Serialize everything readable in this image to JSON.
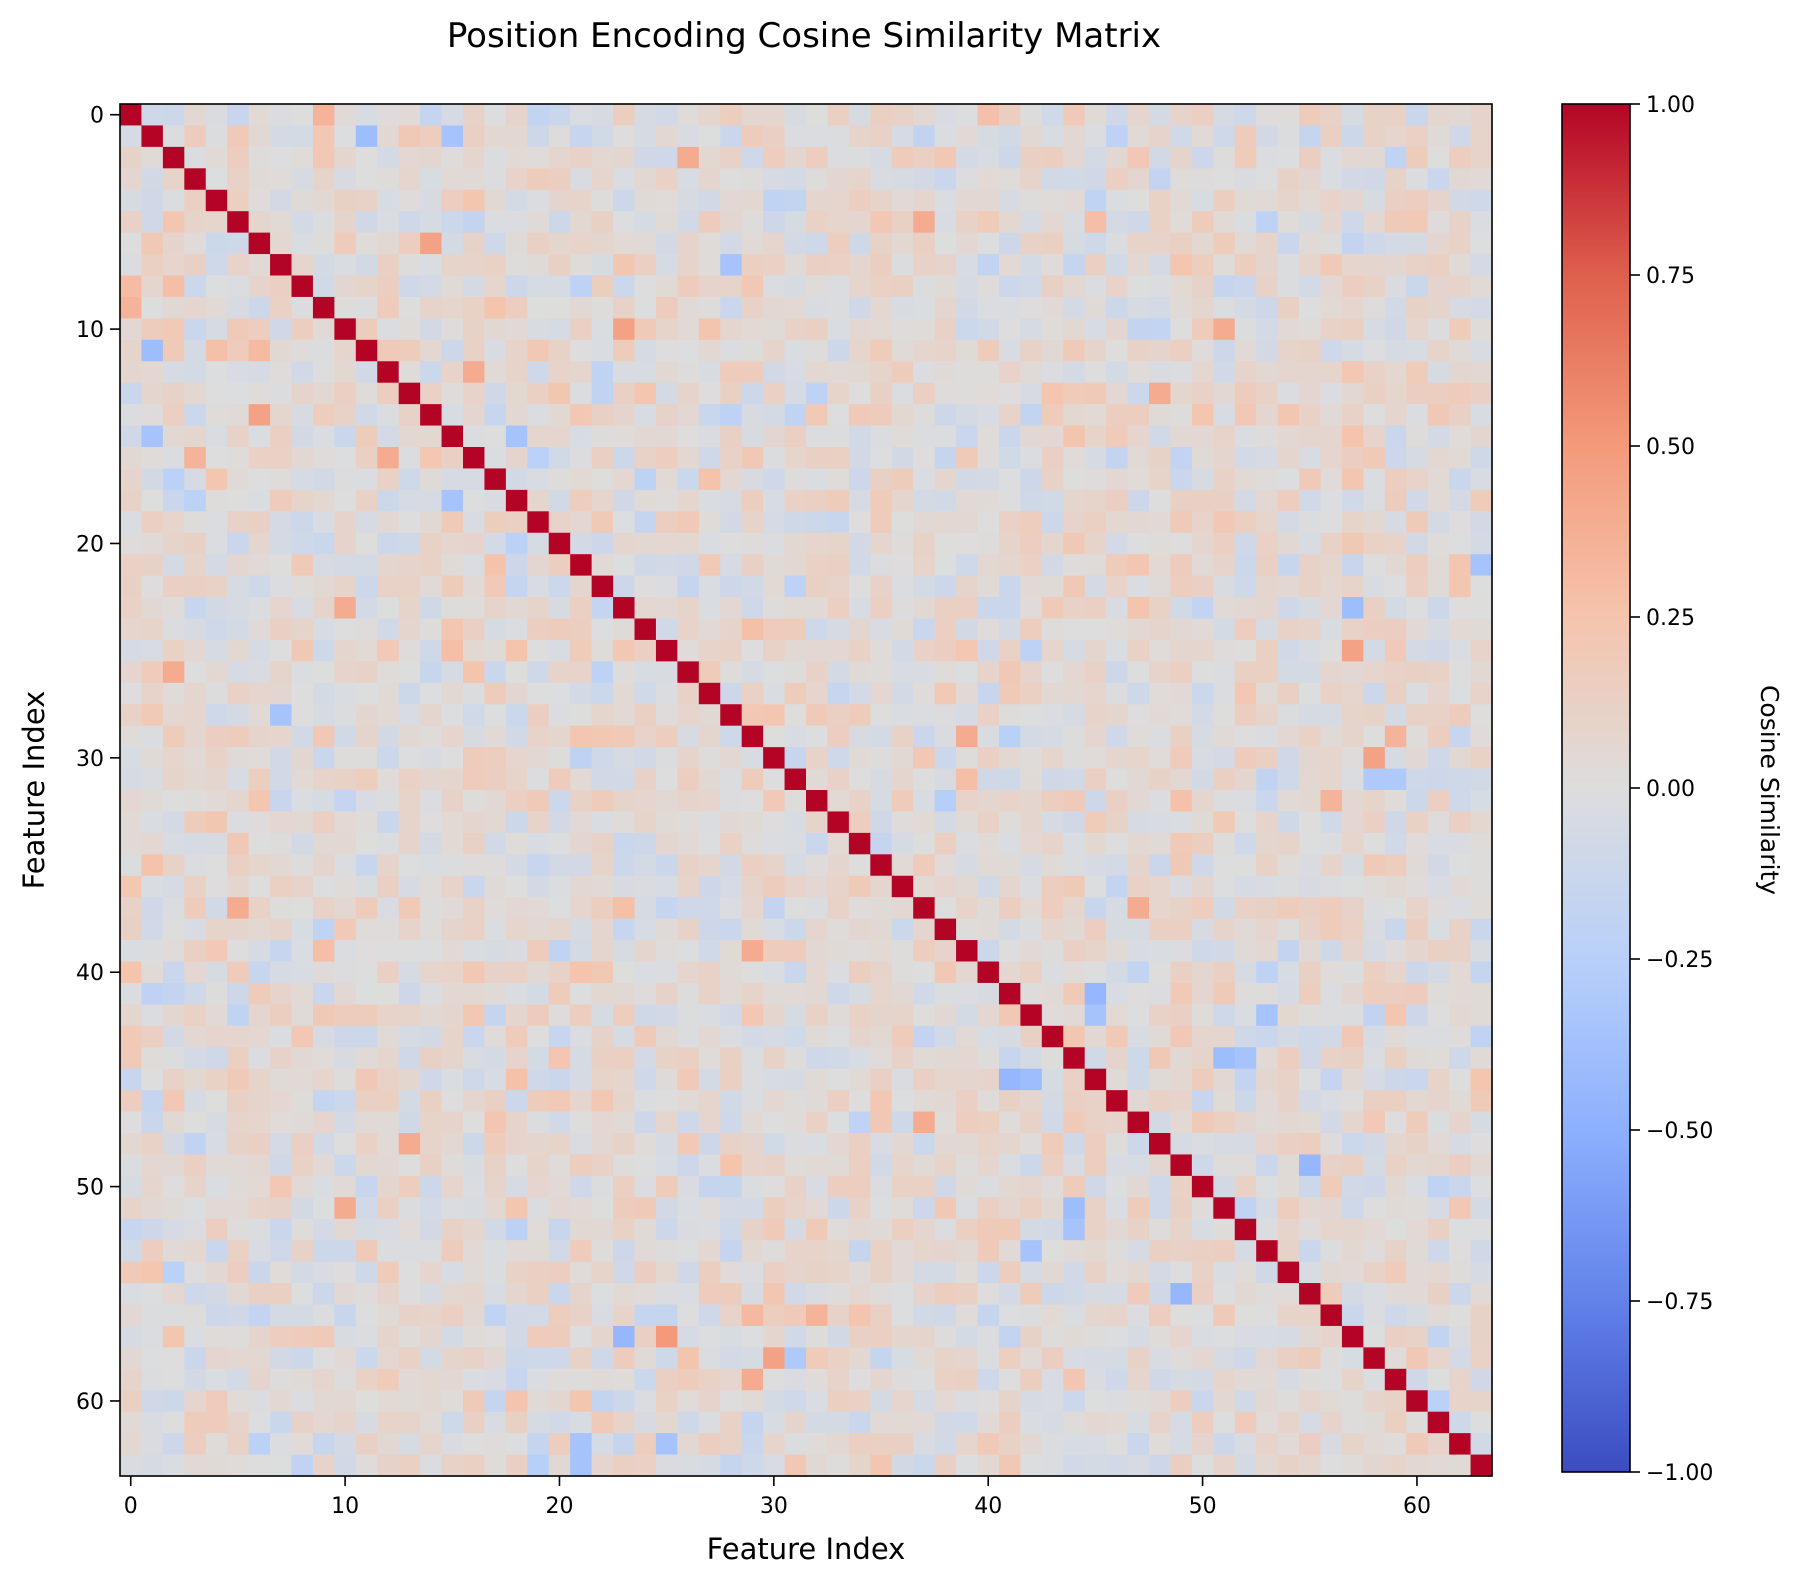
{
  "chart_data": {
    "type": "heatmap",
    "title": "Position Encoding Cosine Similarity Matrix",
    "xlabel": "Feature Index",
    "ylabel": "Feature Index",
    "size": 64,
    "x_range": [
      0,
      63
    ],
    "y_range": [
      0,
      63
    ],
    "x_ticks": [
      0,
      10,
      20,
      30,
      40,
      50,
      60
    ],
    "y_ticks": [
      0,
      10,
      20,
      30,
      40,
      50,
      60
    ],
    "diagonal_value": 1.0,
    "off_diagonal_range": [
      -0.5,
      0.5
    ],
    "highlighted_cells": [
      {
        "row": 6,
        "col": 14,
        "value": 0.45
      },
      {
        "row": 14,
        "col": 6,
        "value": 0.45
      },
      {
        "row": 10,
        "col": 23,
        "value": 0.45
      },
      {
        "row": 23,
        "col": 10,
        "value": 0.4
      },
      {
        "row": 26,
        "col": 2,
        "value": 0.4
      },
      {
        "row": 2,
        "col": 26,
        "value": 0.4
      },
      {
        "row": 57,
        "col": 23,
        "value": -0.45
      },
      {
        "row": 57,
        "col": 25,
        "value": 0.5
      },
      {
        "row": 23,
        "col": 57,
        "value": -0.4
      },
      {
        "row": 25,
        "col": 57,
        "value": 0.45
      },
      {
        "row": 45,
        "col": 41,
        "value": -0.45
      },
      {
        "row": 41,
        "col": 45,
        "value": -0.45
      },
      {
        "row": 44,
        "col": 51,
        "value": -0.4
      },
      {
        "row": 51,
        "col": 44,
        "value": -0.4
      },
      {
        "row": 55,
        "col": 49,
        "value": -0.45
      },
      {
        "row": 49,
        "col": 55,
        "value": -0.45
      },
      {
        "row": 30,
        "col": 58,
        "value": 0.45
      },
      {
        "row": 58,
        "col": 30,
        "value": 0.45
      },
      {
        "row": 11,
        "col": 1,
        "value": -0.4
      },
      {
        "row": 1,
        "col": 11,
        "value": -0.4
      },
      {
        "row": 7,
        "col": 28,
        "value": -0.35
      },
      {
        "row": 28,
        "col": 7,
        "value": -0.35
      },
      {
        "row": 21,
        "col": 63,
        "value": -0.35
      },
      {
        "row": 63,
        "col": 21,
        "value": -0.35
      },
      {
        "row": 62,
        "col": 21,
        "value": -0.35
      },
      {
        "row": 62,
        "col": 25,
        "value": -0.35
      },
      {
        "row": 16,
        "col": 3,
        "value": 0.35
      },
      {
        "row": 9,
        "col": 0,
        "value": 0.35
      },
      {
        "row": 0,
        "col": 9,
        "value": 0.35
      },
      {
        "row": 8,
        "col": 0,
        "value": 0.3
      },
      {
        "row": 12,
        "col": 16,
        "value": 0.4
      },
      {
        "row": 16,
        "col": 12,
        "value": 0.4
      },
      {
        "row": 39,
        "col": 29,
        "value": 0.4
      },
      {
        "row": 29,
        "col": 39,
        "value": 0.4
      },
      {
        "row": 59,
        "col": 29,
        "value": 0.4
      },
      {
        "row": 29,
        "col": 59,
        "value": 0.35
      },
      {
        "row": 51,
        "col": 10,
        "value": 0.4
      },
      {
        "row": 10,
        "col": 51,
        "value": 0.4
      },
      {
        "row": 48,
        "col": 13,
        "value": 0.4
      },
      {
        "row": 13,
        "col": 48,
        "value": 0.4
      },
      {
        "row": 5,
        "col": 37,
        "value": 0.4
      },
      {
        "row": 37,
        "col": 5,
        "value": 0.4
      },
      {
        "row": 47,
        "col": 37,
        "value": 0.4
      },
      {
        "row": 37,
        "col": 47,
        "value": 0.4
      },
      {
        "row": 56,
        "col": 32,
        "value": 0.35
      },
      {
        "row": 32,
        "col": 56,
        "value": 0.35
      },
      {
        "row": 31,
        "col": 58,
        "value": -0.3
      },
      {
        "row": 31,
        "col": 59,
        "value": -0.3
      },
      {
        "row": 58,
        "col": 31,
        "value": -0.3
      },
      {
        "row": 45,
        "col": 42,
        "value": -0.4
      },
      {
        "row": 42,
        "col": 45,
        "value": -0.35
      },
      {
        "row": 53,
        "col": 42,
        "value": -0.35
      },
      {
        "row": 42,
        "col": 53,
        "value": -0.35
      },
      {
        "row": 52,
        "col": 44,
        "value": -0.35
      },
      {
        "row": 44,
        "col": 52,
        "value": -0.35
      },
      {
        "row": 1,
        "col": 15,
        "value": -0.35
      },
      {
        "row": 15,
        "col": 1,
        "value": -0.35
      },
      {
        "row": 18,
        "col": 15,
        "value": -0.35
      },
      {
        "row": 15,
        "col": 18,
        "value": -0.35
      },
      {
        "row": 57,
        "col": 57,
        "value": 1.0
      }
    ],
    "colorbar": {
      "label": "Cosine Similarity",
      "min": -1.0,
      "max": 1.0,
      "ticks": [
        "1.00",
        "0.75",
        "0.50",
        "0.25",
        "0.00",
        "−0.25",
        "−0.50",
        "−0.75",
        "−1.00"
      ],
      "tick_values": [
        1.0,
        0.75,
        0.5,
        0.25,
        0.0,
        -0.25,
        -0.5,
        -0.75,
        -1.0
      ],
      "colormap": "coolwarm"
    }
  }
}
